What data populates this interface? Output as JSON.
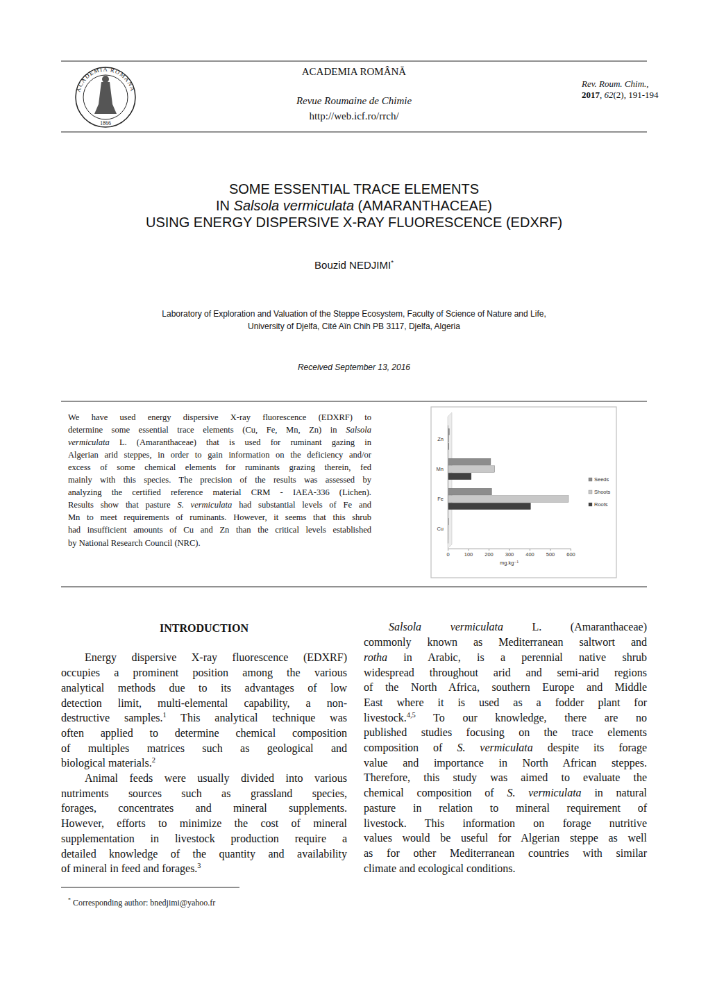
{
  "header": {
    "academy": "ACADEMIA ROMÂNĂ",
    "journal": "Revue Roumaine de Chimie",
    "url": "http://web.icf.ro/rrch/",
    "journal_abbrev": "Rev. Roum. Chim.,",
    "reference": [
      {
        "text": "2017",
        "style": "bold"
      },
      {
        "text": ", "
      },
      {
        "text": "62",
        "style": "italic"
      },
      {
        "text": "(2), 191-194"
      }
    ]
  },
  "logo": {
    "ring_text": "ACADEMIA ROMANA",
    "year": "1866"
  },
  "title": [
    [
      {
        "text": "SOME ESSENTIAL TRACE ELEMENTS"
      }
    ],
    [
      {
        "text": "IN "
      },
      {
        "text": "Salsola vermiculata",
        "style": "italic"
      },
      {
        "text": " (AMARANTHACEAE)"
      }
    ],
    [
      {
        "text": "USING ENERGY DISPERSIVE X-RAY FLUORESCENCE (EDXRF)"
      }
    ]
  ],
  "author": [
    {
      "text": "Bouzid NEDJIMI"
    },
    {
      "text": "*",
      "style": "sup"
    }
  ],
  "affiliation": [
    "Laboratory of Exploration and Valuation of the Steppe Ecosystem, Faculty of Science of Nature and Life,",
    "University of Djelfa, Cité Aïn Chih PB 3117, Djelfa, Algeria"
  ],
  "received": "Received September 13, 2016",
  "abstract": [
    [
      {
        "text": "We have used energy dispersive X-ray fluorescence (EDXRF) to"
      }
    ],
    [
      {
        "text": "determine some essential trace elements (Cu, Fe, Mn, Zn) in "
      },
      {
        "text": "Salsola",
        "style": "italic"
      }
    ],
    [
      {
        "text": "vermiculata",
        "style": "italic"
      },
      {
        "text": " L. (Amaranthaceae) that is used for ruminant gazing in"
      }
    ],
    [
      {
        "text": "Algerian arid steppes, in order to gain information on the deficiency and/or"
      }
    ],
    [
      {
        "text": "excess of some chemical elements for ruminants grazing therein, fed"
      }
    ],
    [
      {
        "text": "mainly with this species. The precision of the results was assessed by"
      }
    ],
    [
      {
        "text": "analyzing the certified reference material CRM - IAEA-336 (Lichen)."
      }
    ],
    [
      {
        "text": "Results show that pasture "
      },
      {
        "text": "S. vermiculata",
        "style": "italic"
      },
      {
        "text": " had substantial levels of Fe and"
      }
    ],
    [
      {
        "text": "Mn to meet requirements of ruminants. However, it seems that this shrub"
      }
    ],
    [
      {
        "text": "had insufficient amounts of Cu and Zn than the critical levels established"
      }
    ],
    [
      {
        "text": "by National Research Council (NRC)."
      }
    ]
  ],
  "chart_data": {
    "type": "bar",
    "orientation": "horizontal",
    "categories": [
      "Zn",
      "Mn",
      "Fe",
      "Cu"
    ],
    "series": [
      {
        "name": "Seeds",
        "color": "#8c8c8c",
        "values": [
          8,
          210,
          215,
          4
        ]
      },
      {
        "name": "Shoots",
        "color": "#c8c8c8",
        "values": [
          6,
          230,
          590,
          3
        ]
      },
      {
        "name": "Roots",
        "color": "#404040",
        "values": [
          5,
          115,
          405,
          3
        ]
      }
    ],
    "xlabel": "mg.kg⁻¹",
    "xlim": [
      0,
      600
    ],
    "xticks": [
      0,
      100,
      200,
      300,
      400,
      500,
      600
    ],
    "grid": false,
    "legend": "right"
  },
  "introduction": {
    "heading": "INTRODUCTION",
    "left": [
      [
        [
          {
            "text": "Energy dispersive X-ray fluorescence (EDXRF)"
          }
        ],
        [
          {
            "text": "occupies a prominent position among the various"
          }
        ],
        [
          {
            "text": "analytical methods due to its advantages of low"
          }
        ],
        [
          {
            "text": "detection limit, multi-elemental capability, a non-"
          }
        ],
        [
          {
            "text": "destructive samples."
          },
          {
            "text": "1",
            "style": "sup"
          },
          {
            "text": " This analytical technique was"
          }
        ],
        [
          {
            "text": "often applied to determine chemical composition"
          }
        ],
        [
          {
            "text": "of multiples matrices such as geological and"
          }
        ],
        [
          {
            "text": "biological materials."
          },
          {
            "text": "2",
            "style": "sup"
          }
        ]
      ],
      [
        [
          {
            "text": "Animal feeds were usually divided into various"
          }
        ],
        [
          {
            "text": "nutriments sources such as grassland species,"
          }
        ],
        [
          {
            "text": "forages, concentrates and mineral supplements."
          }
        ],
        [
          {
            "text": "However, efforts to minimize the cost of mineral"
          }
        ],
        [
          {
            "text": "supplementation in livestock production require a"
          }
        ],
        [
          {
            "text": "detailed knowledge of the quantity and availability"
          }
        ],
        [
          {
            "text": "of mineral in feed and forages."
          },
          {
            "text": "3",
            "style": "sup"
          }
        ]
      ]
    ],
    "right": [
      [
        [
          {
            "text": "Salsola vermiculata",
            "style": "italic"
          },
          {
            "text": " L. (Amaranthaceae)"
          }
        ],
        [
          {
            "text": "commonly known as Mediterranean saltwort and"
          }
        ],
        [
          {
            "text": "rotha",
            "style": "italic"
          },
          {
            "text": " in Arabic, is a perennial native shrub"
          }
        ],
        [
          {
            "text": "widespread throughout arid and semi-arid regions"
          }
        ],
        [
          {
            "text": "of the North Africa, southern Europe and Middle"
          }
        ],
        [
          {
            "text": "East where it is used as a fodder plant for"
          }
        ],
        [
          {
            "text": "livestock."
          },
          {
            "text": "4,5",
            "style": "sup"
          },
          {
            "text": " To our knowledge, there are no"
          }
        ],
        [
          {
            "text": "published studies focusing on the trace elements"
          }
        ],
        [
          {
            "text": "composition of "
          },
          {
            "text": "S. vermiculata",
            "style": "italic"
          },
          {
            "text": " despite its forage"
          }
        ],
        [
          {
            "text": "value and importance in North African steppes."
          }
        ],
        [
          {
            "text": "Therefore, this study was aimed to evaluate the"
          }
        ],
        [
          {
            "text": "chemical composition of "
          },
          {
            "text": "S. vermiculata",
            "style": "italic"
          },
          {
            "text": " in natural"
          }
        ],
        [
          {
            "text": "pasture in relation to mineral requirement of"
          }
        ],
        [
          {
            "text": "livestock. This information on forage nutritive"
          }
        ],
        [
          {
            "text": "values would be useful for Algerian steppe as well"
          }
        ],
        [
          {
            "text": "as for other Mediterranean countries with similar"
          }
        ],
        [
          {
            "text": "climate and ecological conditions."
          }
        ]
      ]
    ]
  },
  "footnote": [
    {
      "text": "*",
      "style": "sup"
    },
    {
      "text": " Corresponding author: bnedjimi@yahoo.fr"
    }
  ]
}
